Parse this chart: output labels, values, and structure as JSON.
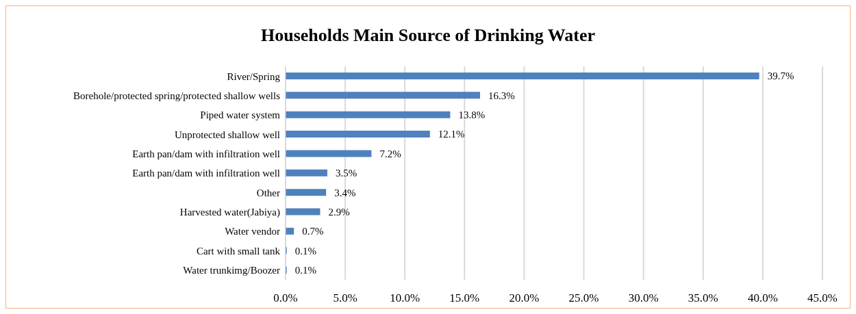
{
  "chart_data": {
    "type": "bar",
    "orientation": "horizontal",
    "title": "Households Main Source of Drinking Water",
    "categories": [
      "River/Spring",
      "Borehole/protected spring/protected shallow wells",
      "Piped water system",
      "Unprotected shallow well",
      "Earth pan/dam with infiltration well",
      "Earth pan/dam with infiltration well",
      "Other",
      "Harvested water(Jabiya)",
      "Water vendor",
      "Cart with small tank",
      "Water trunkimg/Boozer"
    ],
    "values": [
      39.7,
      16.3,
      13.8,
      12.1,
      7.2,
      3.5,
      3.4,
      2.9,
      0.7,
      0.1,
      0.1
    ],
    "value_labels": [
      "39.7%",
      "16.3%",
      "13.8%",
      "12.1%",
      "7.2%",
      "3.5%",
      "3.4%",
      "2.9%",
      "0.7%",
      "0.1%",
      "0.1%"
    ],
    "color": "#4f81bd",
    "xlim": [
      0,
      45
    ],
    "xticks": [
      {
        "value": 0,
        "label": "0.0%"
      },
      {
        "value": 5,
        "label": "5.0%"
      },
      {
        "value": 10,
        "label": "10.0%"
      },
      {
        "value": 15,
        "label": "15.0%"
      },
      {
        "value": 20,
        "label": "20.0%"
      },
      {
        "value": 25,
        "label": "25.0%"
      },
      {
        "value": 30,
        "label": "30.0%"
      },
      {
        "value": 35,
        "label": "35.0%"
      },
      {
        "value": 40,
        "label": "40.0%"
      },
      {
        "value": 45,
        "label": "45.0%"
      }
    ],
    "grid": "x",
    "legend": false
  }
}
